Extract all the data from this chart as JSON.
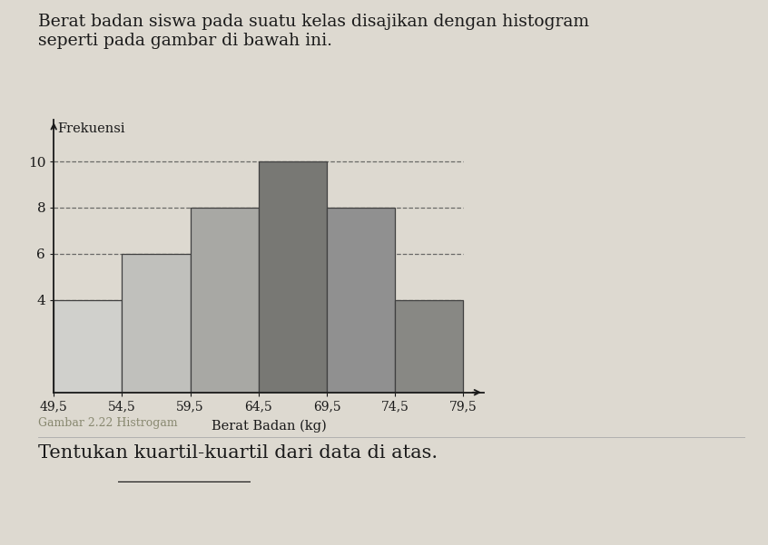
{
  "title_line1": "Berat badan siswa pada suatu kelas disajikan dengan histogram",
  "title_line2": "seperti pada gambar di bawah ini.",
  "caption": "Gambar 2.22 Histrogam",
  "question": "Tentukan kuartil-kuartil dari data di atas.",
  "bar_left_edges": [
    49.5,
    54.5,
    59.5,
    64.5,
    69.5,
    74.5
  ],
  "bar_widths": [
    5,
    5,
    5,
    5,
    5,
    5
  ],
  "bar_heights": [
    4,
    6,
    8,
    10,
    8,
    4
  ],
  "bar_colors": [
    "#d0d0cc",
    "#c0c0bc",
    "#a8a8a4",
    "#787874",
    "#909090",
    "#888884"
  ],
  "bar_edge_color": "#404040",
  "xlabel": "Berat Badan (kg)",
  "ylabel": "Frekuensi",
  "xlim": [
    49.5,
    81
  ],
  "ylim": [
    0,
    11.8
  ],
  "yticks": [
    4,
    6,
    8,
    10
  ],
  "xtick_labels": [
    "49,5",
    "54,5",
    "59,5",
    "64,5",
    "69,5",
    "74,5",
    "79,5"
  ],
  "xtick_positions": [
    49.5,
    54.5,
    59.5,
    64.5,
    69.5,
    74.5,
    79.5
  ],
  "grid_color": "#555555",
  "bg_color": "#ddd9d0",
  "text_color": "#1a1a1a",
  "caption_color": "#888870",
  "title_fontsize": 13.5,
  "axis_label_fontsize": 10.5,
  "tick_fontsize": 10,
  "caption_fontsize": 9,
  "question_fontsize": 15
}
